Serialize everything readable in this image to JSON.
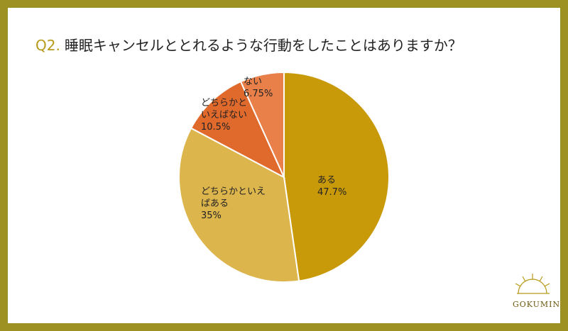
{
  "chart_data": {
    "type": "pie",
    "question_label": "Q2.",
    "title": "睡眠キャンセルととれるような行動をしたことはありますか？",
    "categories": [
      "ある",
      "どちらかといえばある",
      "どちらかといえばない",
      "ない"
    ],
    "values": [
      47.7,
      35,
      10.5,
      6.75
    ],
    "value_labels": [
      "47.7%",
      "35%",
      "10.5%",
      "6.75%"
    ],
    "colors": [
      "#c89a0a",
      "#dcb54c",
      "#e0692c",
      "#e98049"
    ]
  },
  "logo": "GOKUMIN"
}
